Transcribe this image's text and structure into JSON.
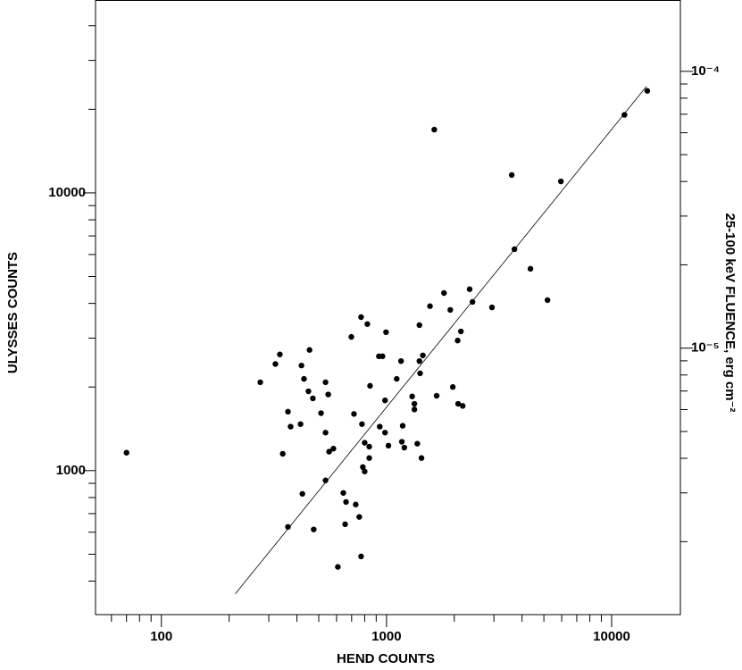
{
  "chart_data": {
    "type": "scatter",
    "xlabel": "HEND COUNTS",
    "ylabel": "ULYSSES COUNTS",
    "y2label": "25-100 keV FLUENCE, erg cm⁻²",
    "log_x": true,
    "log_y": true,
    "color": "#000000",
    "xlim": [
      51,
      20200
    ],
    "ylim": [
      303,
      49500
    ],
    "y2lim": [
      1.09e-06,
      0.000181
    ],
    "xticks": [
      100,
      1000,
      10000
    ],
    "yticks": [
      1000,
      10000
    ],
    "y2ticks": [
      {
        "value": 0.0001,
        "label": "10⁻⁴"
      },
      {
        "value": 1e-05,
        "label": "10⁻⁵"
      }
    ],
    "xminor_ticks": [
      60,
      70,
      80,
      90,
      200,
      300,
      400,
      500,
      600,
      700,
      800,
      900,
      2000,
      3000,
      4000,
      5000,
      6000,
      7000,
      8000,
      9000
    ],
    "yminor_ticks": [
      400,
      500,
      600,
      700,
      800,
      900,
      2000,
      3000,
      4000,
      5000,
      6000,
      7000,
      8000,
      9000,
      20000,
      30000,
      40000
    ],
    "y2minor_ticks": [
      2e-06,
      3e-06,
      4e-06,
      5e-06,
      6e-06,
      7e-06,
      8e-06,
      9e-06,
      2e-05,
      3e-05,
      4e-05,
      5e-05,
      6e-05,
      7e-05,
      8e-05,
      9e-05
    ],
    "x": [
      70,
      275,
      321,
      336,
      346,
      365,
      375,
      365,
      423,
      415,
      419,
      430,
      455,
      450,
      471,
      475,
      512,
      536,
      536,
      536,
      551,
      556,
      581,
      643,
      661,
      655,
      698,
      717,
      730,
      757,
      771,
      778,
      771,
      785,
      800,
      800,
      822,
      838,
      845,
      838,
      608,
      925,
      960,
      933,
      985,
      995,
      985,
      1020,
      1110,
      1170,
      1180,
      1200,
      1160,
      1300,
      1330,
      1330,
      1370,
      1400,
      1400,
      1410,
      1430,
      1450,
      1560,
      1630,
      1670,
      1800,
      1920,
      1970,
      2070,
      2080,
      2140,
      2180,
      2340,
      2410,
      2940,
      3600,
      3700,
      4360,
      5190,
      5950,
      11400,
      14400
    ],
    "values": [
      1160,
      2080,
      2420,
      2620,
      1150,
      1630,
      1440,
      627,
      825,
      1470,
      2390,
      2140,
      2720,
      1930,
      1820,
      614,
      1610,
      1370,
      922,
      2080,
      1880,
      1170,
      1200,
      831,
      771,
      641,
      3030,
      1600,
      755,
      681,
      3570,
      1470,
      491,
      1030,
      1260,
      993,
      3370,
      1220,
      2020,
      1110,
      450,
      2580,
      2580,
      1440,
      1370,
      3150,
      1790,
      1230,
      2140,
      1270,
      1450,
      1210,
      2480,
      1850,
      1740,
      1660,
      1250,
      3340,
      2480,
      2240,
      1110,
      2600,
      3910,
      16900,
      1860,
      4360,
      3790,
      2000,
      2940,
      1740,
      3170,
      1710,
      4500,
      4050,
      3870,
      11600,
      6270,
      5330,
      4110,
      11000,
      19100,
      23300
    ],
    "fit_line": {
      "x": [
        213,
        14260
      ],
      "values": [
        360,
        24150
      ]
    }
  }
}
